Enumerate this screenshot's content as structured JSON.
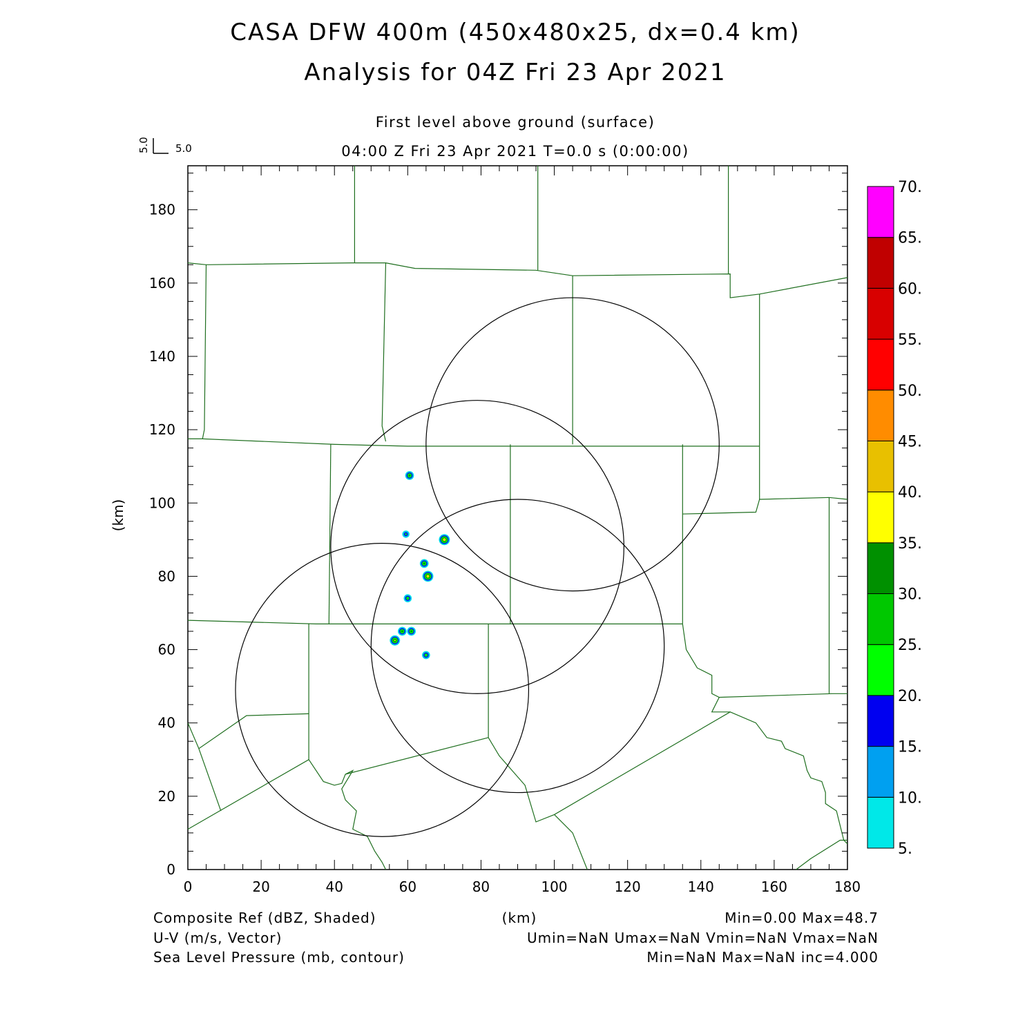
{
  "header": {
    "title_line1": "CASA DFW 400m (450x480x25, dx=0.4 km)",
    "title_line2": "Analysis for 04Z Fri 23 Apr 2021",
    "level": "First level above ground (surface)",
    "time": "04:00 Z Fri 23 Apr 2021    T=0.0 s (0:00:00)",
    "vector_ref_u": "5.0",
    "vector_ref_v": "5.0"
  },
  "axes": {
    "x_label": "(km)",
    "y_label": "(km)",
    "x_ticks": [
      "0",
      "20",
      "40",
      "60",
      "80",
      "100",
      "120",
      "140",
      "160",
      "180"
    ],
    "y_ticks": [
      "0",
      "20",
      "40",
      "60",
      "80",
      "100",
      "120",
      "140",
      "160",
      "180"
    ],
    "x_range": [
      0,
      180
    ],
    "y_range": [
      0,
      192
    ]
  },
  "colorbar": {
    "labels": [
      "5.",
      "10.",
      "15.",
      "20.",
      "25.",
      "30.",
      "35.",
      "40.",
      "45.",
      "50.",
      "55.",
      "60.",
      "65.",
      "70."
    ],
    "colors": [
      "#00e8e8",
      "#00a0f0",
      "#0000f0",
      "#00ff00",
      "#00c800",
      "#009000",
      "#ffff00",
      "#e8c000",
      "#ff8c00",
      "#ff0000",
      "#d80000",
      "#c00000",
      "#ff00ff"
    ]
  },
  "footer": {
    "left1": "Composite Ref (dBZ, Shaded)",
    "left2": "U-V (m/s, Vector)",
    "left3": "Sea Level Pressure (mb, contour)",
    "center": "(km)",
    "right1": "Min=0.00 Max=48.7",
    "right2": "Umin=NaN Umax=NaN Vmin=NaN Vmax=NaN",
    "right3": "Min=NaN Max=NaN inc=4.000"
  },
  "map_data": {
    "radar_rings": [
      {
        "cx": 105.0,
        "cy": 116.0,
        "r": 40.0
      },
      {
        "cx": 79.0,
        "cy": 88.0,
        "r": 40.0
      },
      {
        "cx": 53.0,
        "cy": 49.0,
        "r": 40.0
      },
      {
        "cx": 90.0,
        "cy": 61.0,
        "r": 40.0
      }
    ],
    "echoes": [
      {
        "x": 60.5,
        "y": 107.5,
        "dbz": 30,
        "r": 1.2
      },
      {
        "x": 59.5,
        "y": 91.5,
        "dbz": 20,
        "r": 1.0
      },
      {
        "x": 70.0,
        "y": 90.0,
        "dbz": 40,
        "r": 1.5
      },
      {
        "x": 64.5,
        "y": 83.5,
        "dbz": 30,
        "r": 1.2
      },
      {
        "x": 65.5,
        "y": 80.0,
        "dbz": 40,
        "r": 1.5
      },
      {
        "x": 60.0,
        "y": 74.0,
        "dbz": 25,
        "r": 1.1
      },
      {
        "x": 58.5,
        "y": 65.0,
        "dbz": 30,
        "r": 1.2
      },
      {
        "x": 61.0,
        "y": 65.0,
        "dbz": 30,
        "r": 1.2
      },
      {
        "x": 56.5,
        "y": 62.5,
        "dbz": 35,
        "r": 1.4
      },
      {
        "x": 65.0,
        "y": 58.5,
        "dbz": 25,
        "r": 1.1
      }
    ],
    "county_lines": [
      [
        [
          0,
          165.5
        ],
        [
          5,
          165
        ],
        [
          45,
          165.5
        ],
        [
          54,
          165.5
        ],
        [
          62,
          164
        ],
        [
          95,
          163.5
        ],
        [
          105,
          162
        ],
        [
          148,
          162.5
        ],
        [
          148,
          156
        ],
        [
          156,
          157
        ],
        [
          180,
          161.5
        ]
      ],
      [
        [
          45.5,
          192
        ],
        [
          45.5,
          165.5
        ]
      ],
      [
        [
          95.5,
          192
        ],
        [
          95.5,
          163.5
        ]
      ],
      [
        [
          147.5,
          192
        ],
        [
          147.5,
          162.5
        ]
      ],
      [
        [
          5,
          165
        ],
        [
          4.5,
          120
        ],
        [
          4,
          117.5
        ]
      ],
      [
        [
          54,
          165.5
        ],
        [
          53,
          121
        ],
        [
          54,
          116.8
        ]
      ],
      [
        [
          105,
          162
        ],
        [
          105,
          116
        ]
      ],
      [
        [
          0,
          117.5
        ],
        [
          4,
          117.5
        ],
        [
          40,
          116
        ],
        [
          60,
          115.5
        ],
        [
          108,
          115.5
        ],
        [
          125,
          115.5
        ],
        [
          148,
          115.5
        ],
        [
          156,
          115.5
        ]
      ],
      [
        [
          156,
          157
        ],
        [
          156,
          116
        ],
        [
          156,
          101
        ]
      ],
      [
        [
          39,
          116
        ],
        [
          38.5,
          67
        ]
      ],
      [
        [
          88,
          116
        ],
        [
          88,
          67
        ]
      ],
      [
        [
          135,
          116
        ],
        [
          135,
          67
        ]
      ],
      [
        [
          0,
          68
        ],
        [
          35,
          67
        ],
        [
          88,
          67
        ],
        [
          135,
          67
        ]
      ],
      [
        [
          135,
          97
        ],
        [
          155,
          97.5
        ],
        [
          156,
          101
        ],
        [
          175,
          101.5
        ],
        [
          180,
          101
        ]
      ],
      [
        [
          175,
          101.5
        ],
        [
          175,
          48
        ]
      ],
      [
        [
          33,
          67
        ],
        [
          33,
          30
        ]
      ],
      [
        [
          82,
          67
        ],
        [
          82,
          36
        ]
      ],
      [
        [
          0,
          40
        ],
        [
          3,
          33
        ],
        [
          16,
          42
        ],
        [
          33,
          42.5
        ]
      ],
      [
        [
          0,
          11
        ],
        [
          33,
          30
        ],
        [
          37,
          24
        ],
        [
          40,
          23
        ],
        [
          42,
          23.5
        ],
        [
          43,
          26
        ]
      ],
      [
        [
          43,
          26
        ],
        [
          45,
          27
        ],
        [
          42,
          22
        ],
        [
          43,
          19
        ],
        [
          46,
          16
        ],
        [
          45,
          11
        ],
        [
          47,
          10
        ],
        [
          49,
          9
        ],
        [
          51,
          5
        ],
        [
          53,
          2
        ],
        [
          54,
          0
        ]
      ],
      [
        [
          43,
          26
        ],
        [
          82,
          36
        ],
        [
          85,
          31
        ],
        [
          92,
          23
        ],
        [
          95,
          13
        ],
        [
          100,
          15
        ],
        [
          148,
          43
        ],
        [
          155,
          40
        ],
        [
          158,
          36
        ],
        [
          162,
          35
        ],
        [
          163,
          33
        ],
        [
          168,
          31
        ],
        [
          169,
          27
        ],
        [
          170,
          25
        ],
        [
          173,
          24
        ],
        [
          174,
          21
        ],
        [
          174,
          18
        ],
        [
          177,
          16
        ],
        [
          178,
          12
        ],
        [
          179,
          8
        ],
        [
          180,
          7
        ]
      ],
      [
        [
          135,
          67
        ],
        [
          136,
          60
        ],
        [
          139,
          55
        ],
        [
          143,
          53
        ],
        [
          143,
          48
        ],
        [
          145,
          47
        ],
        [
          176,
          48
        ],
        [
          180,
          48
        ]
      ],
      [
        [
          145,
          47
        ],
        [
          143,
          43
        ],
        [
          148,
          43
        ]
      ],
      [
        [
          100,
          15
        ],
        [
          105,
          10
        ],
        [
          109,
          0
        ]
      ],
      [
        [
          166,
          0
        ],
        [
          170,
          3
        ],
        [
          178,
          8
        ],
        [
          180,
          8
        ]
      ],
      [
        [
          3,
          33
        ],
        [
          9,
          16
        ]
      ]
    ]
  }
}
